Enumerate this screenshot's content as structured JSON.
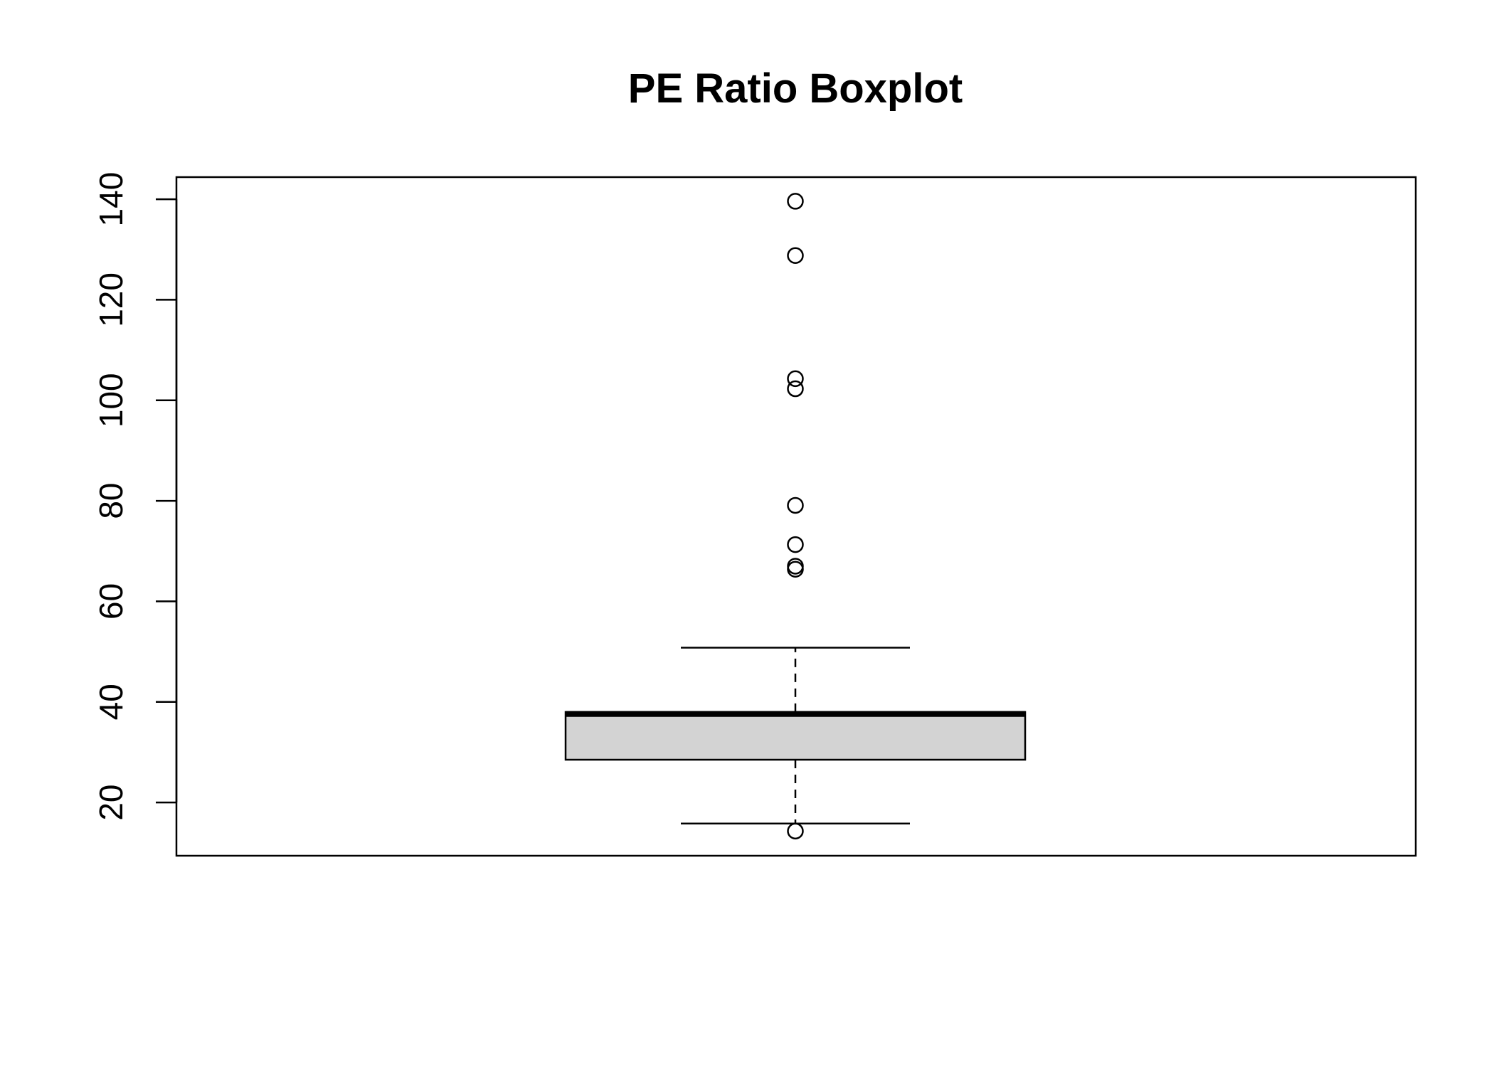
{
  "chart_data": {
    "type": "boxplot",
    "title": "PE Ratio Boxplot",
    "xlabel": "",
    "ylabel": "",
    "ylim": [
      9.4,
      144.4
    ],
    "yticks": [
      20,
      40,
      60,
      80,
      100,
      120,
      140
    ],
    "grid": false,
    "box": {
      "whisker_low": 15.8,
      "q1": 28.5,
      "median": 37.6,
      "q3": 38.0,
      "whisker_high": 50.8
    },
    "outliers": [
      139.6,
      128.8,
      104.3,
      102.3,
      79.1,
      71.3,
      67.0,
      66.4,
      14.3
    ],
    "colors": {
      "box_fill": "#d3d3d3",
      "stroke": "#000000"
    }
  }
}
